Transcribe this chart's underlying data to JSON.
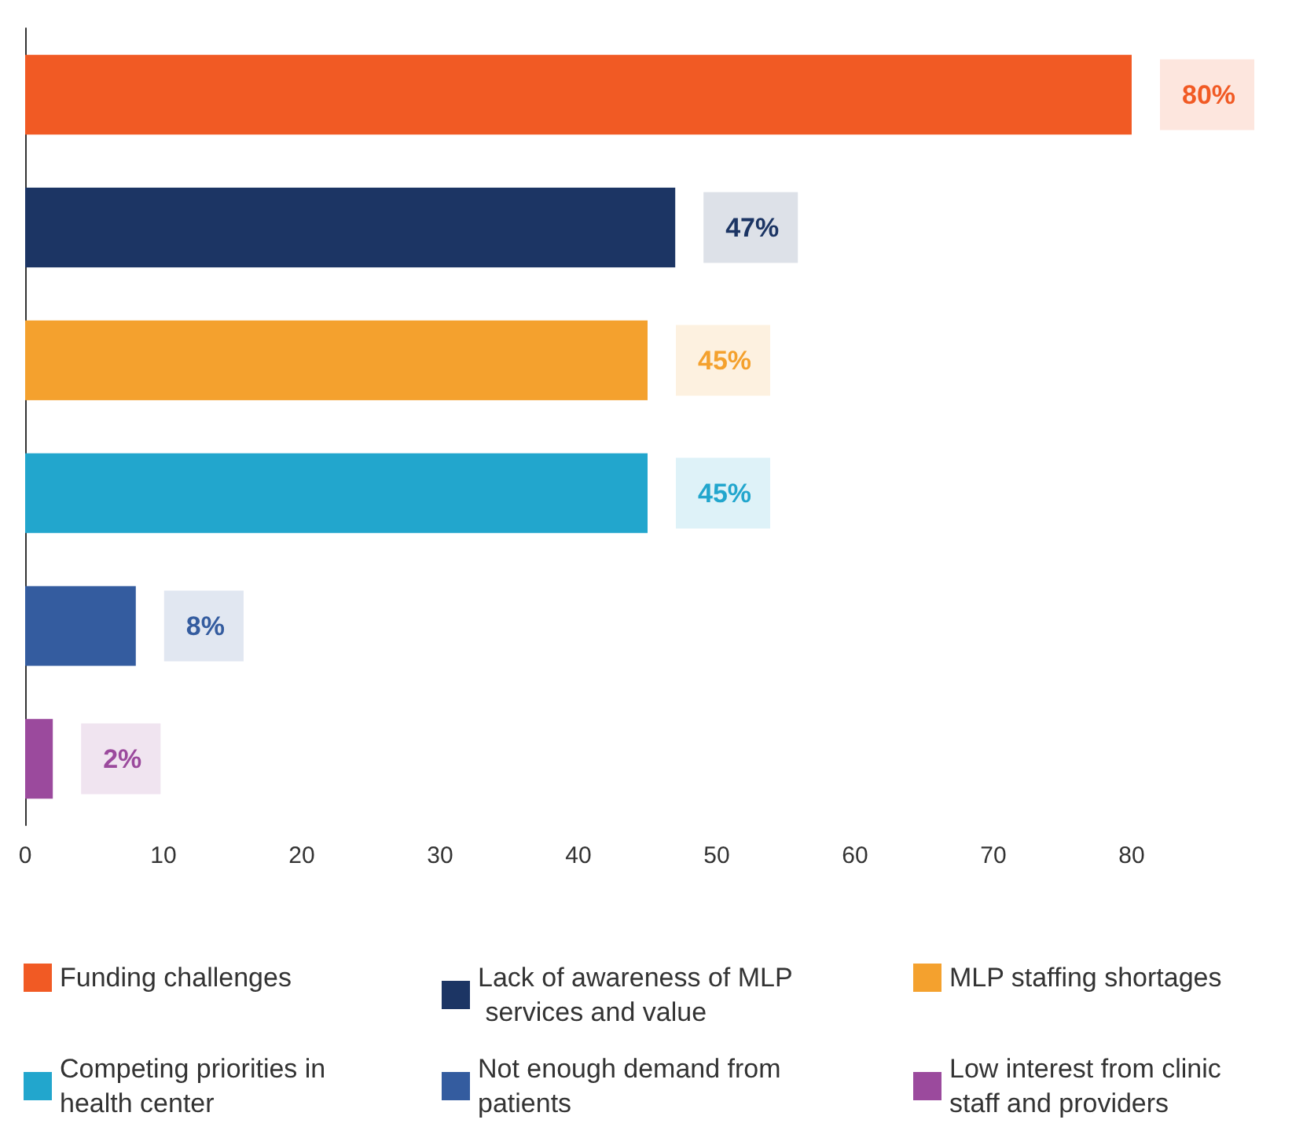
{
  "chart_data": {
    "type": "bar",
    "orientation": "horizontal",
    "categories": [
      null,
      null,
      null,
      null,
      null,
      null
    ],
    "series": [
      {
        "name": "Funding challenges",
        "color": "#f15a24",
        "values": [
          80,
          null,
          null,
          null,
          null,
          null
        ],
        "value_labels": [
          "80%",
          null,
          null,
          null,
          null,
          null
        ]
      },
      {
        "name": "Lack of awareness of MLP services and value",
        "color": "#1c3564",
        "values": [
          null,
          47,
          null,
          null,
          null,
          null
        ],
        "value_labels": [
          null,
          "47%",
          null,
          null,
          null,
          null
        ]
      },
      {
        "name": "MLP staffing shortages",
        "color": "#f4a12e",
        "values": [
          null,
          null,
          45,
          null,
          null,
          null
        ],
        "value_labels": [
          null,
          null,
          "45%",
          null,
          null,
          null
        ]
      },
      {
        "name": "Competing priorities in health center",
        "color": "#22a6cd",
        "values": [
          null,
          null,
          null,
          45,
          null,
          null
        ],
        "value_labels": [
          null,
          null,
          null,
          "45%",
          null,
          null
        ]
      },
      {
        "name": "Not enough demand from patients",
        "color": "#345c9f",
        "values": [
          null,
          null,
          null,
          null,
          8,
          null
        ],
        "value_labels": [
          null,
          null,
          null,
          null,
          "8%",
          null
        ]
      },
      {
        "name": "Low interest from clinic staff and providers",
        "color": "#9b4a9d",
        "values": [
          null,
          null,
          null,
          null,
          null,
          2
        ],
        "value_labels": [
          null,
          null,
          null,
          null,
          null,
          "2%"
        ]
      }
    ],
    "xlim": [
      0,
      80
    ],
    "xticks": [
      0,
      10,
      20,
      30,
      40,
      50,
      60,
      70,
      80
    ],
    "grid": false,
    "legend": "bottom"
  }
}
